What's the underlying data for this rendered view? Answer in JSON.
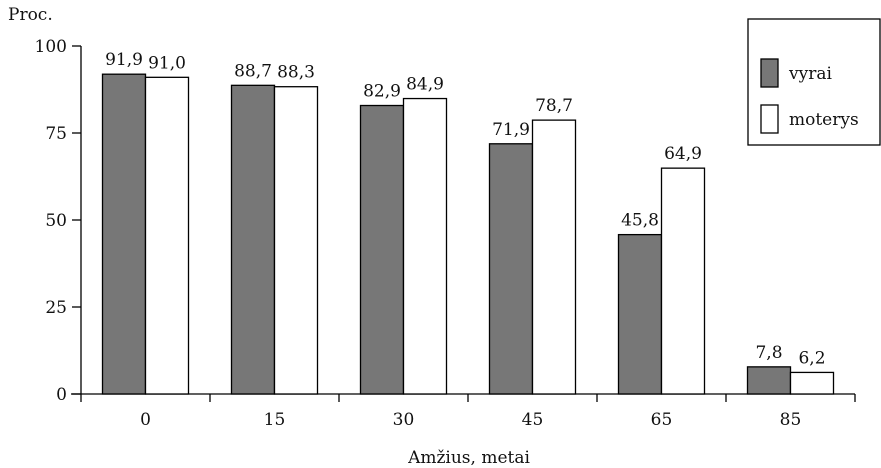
{
  "chart_data": {
    "type": "bar",
    "title": "",
    "ylabel": "Proc.",
    "xlabel": "Amžius, metai",
    "categories": [
      "0",
      "15",
      "30",
      "45",
      "65",
      "85"
    ],
    "ylim": [
      0,
      100
    ],
    "yticks": [
      "0",
      "25",
      "50",
      "75",
      "100"
    ],
    "grid": false,
    "legend_position": "top-right",
    "series": [
      {
        "name": "vyrai",
        "color": "#777777",
        "values": [
          91.9,
          88.7,
          82.9,
          71.9,
          45.8,
          7.8
        ],
        "labels": [
          "91,9",
          "88,7",
          "82,9",
          "71,9",
          "45,8",
          "7,8"
        ]
      },
      {
        "name": "moterys",
        "color": "#ffffff",
        "values": [
          91.0,
          88.3,
          84.9,
          78.7,
          64.9,
          6.2
        ],
        "labels": [
          "91,0",
          "88,3",
          "84,9",
          "78,7",
          "64,9",
          "6,2"
        ]
      }
    ]
  }
}
